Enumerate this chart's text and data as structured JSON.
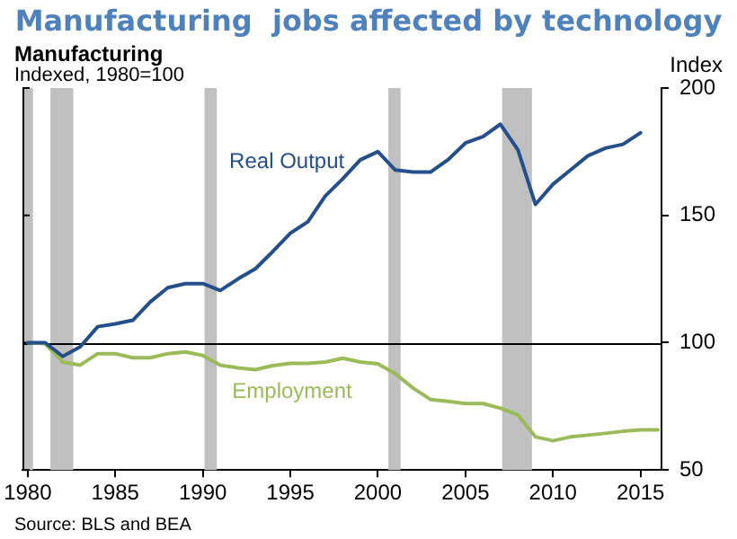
{
  "chart_data": {
    "type": "line",
    "title": "Manufacturing  jobs affected by technology",
    "subtitle": "Manufacturing",
    "ylabel": "Index",
    "annotations": [
      "Indexed, 1980=100",
      "Source: BLS and BEA"
    ],
    "xlim": [
      1979.7,
      2016.2
    ],
    "xticks": [
      1980,
      1985,
      1990,
      1995,
      2000,
      2005,
      2010,
      2015
    ],
    "ylim": [
      50,
      200
    ],
    "yticks": [
      50,
      100,
      150,
      200
    ],
    "series": [
      {
        "name": "Real Output",
        "color": "#254f8a",
        "x": [
          1980,
          1981,
          1982,
          1983,
          1984,
          1985,
          1986,
          1987,
          1988,
          1989,
          1990,
          1991,
          1992,
          1993,
          1994,
          1995,
          1996,
          1997,
          1998,
          1999,
          2000,
          2001,
          2002,
          2003,
          2004,
          2005,
          2006,
          2007,
          2008,
          2009,
          2010,
          2011,
          2012,
          2013,
          2014,
          2015
        ],
        "values": [
          100,
          100,
          94.6,
          98.4,
          106.3,
          107.4,
          108.8,
          116,
          121.6,
          123.2,
          123.2,
          120.5,
          125,
          129,
          135.8,
          143,
          147.5,
          157.6,
          164.4,
          171.8,
          175,
          167.8,
          167,
          167,
          171.8,
          178.4,
          180.9,
          185.8,
          175.7,
          154.3,
          162.2,
          167.8,
          173.4,
          176.4,
          177.9,
          182.4
        ]
      },
      {
        "name": "Employment",
        "color": "#9bbb59",
        "x": [
          1980,
          1981,
          1982,
          1983,
          1984,
          1985,
          1986,
          1987,
          1988,
          1989,
          1990,
          1991,
          1992,
          1993,
          1994,
          1995,
          1996,
          1997,
          1998,
          1999,
          2000,
          2001,
          2002,
          2003,
          2004,
          2005,
          2006,
          2007,
          2008,
          2009,
          2010,
          2011,
          2012,
          2013,
          2014,
          2015,
          2016
        ],
        "values": [
          100,
          99.6,
          92.4,
          91.2,
          95.7,
          95.7,
          94.1,
          94.1,
          95.7,
          96.4,
          95,
          91.2,
          90.1,
          89.4,
          91,
          91.9,
          91.9,
          92.4,
          93.9,
          92.4,
          91.7,
          87.8,
          82.2,
          77.7,
          77,
          76.1,
          76.1,
          74.3,
          71.6,
          63,
          61.5,
          63,
          63.7,
          64.4,
          65.2,
          65.8,
          65.8
        ]
      }
    ],
    "ref_lines": [
      {
        "axis": "y",
        "value": 100,
        "color": "#000000"
      }
    ],
    "bands": [
      {
        "axis": "x",
        "from": 1979.8,
        "to": 1980.3,
        "color": "#c0c0c0"
      },
      {
        "axis": "x",
        "from": 1981.3,
        "to": 1982.6,
        "color": "#c0c0c0"
      },
      {
        "axis": "x",
        "from": 1990.1,
        "to": 1990.8,
        "color": "#c0c0c0"
      },
      {
        "axis": "x",
        "from": 2000.6,
        "to": 2001.3,
        "color": "#c0c0c0"
      },
      {
        "axis": "x",
        "from": 2007.1,
        "to": 2008.8,
        "color": "#c0c0c0"
      }
    ],
    "grid": false,
    "legend": false,
    "marker": "none",
    "line_style": "solid"
  }
}
